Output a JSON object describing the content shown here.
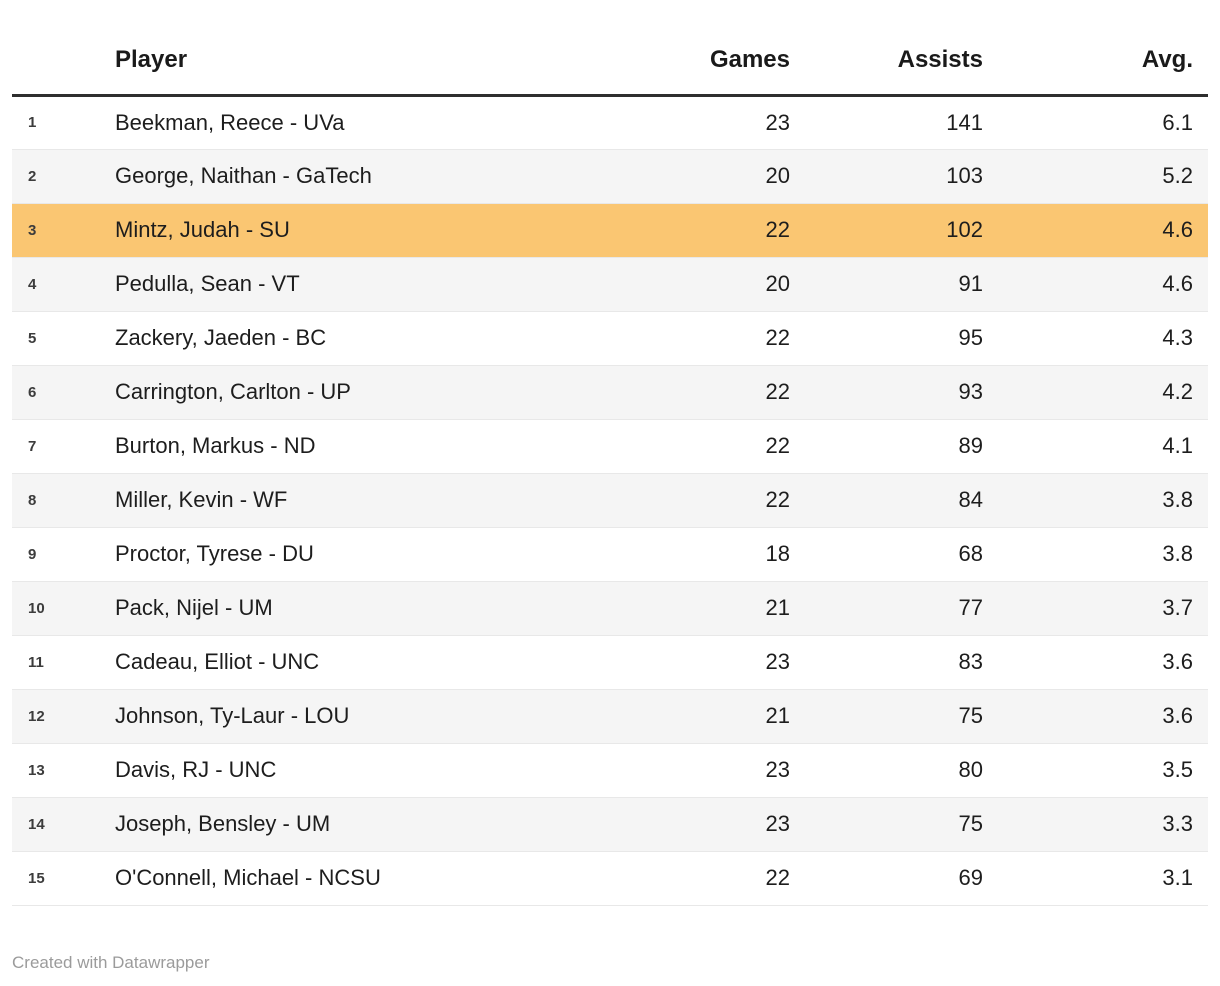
{
  "chart_data": {
    "type": "table",
    "columns": {
      "rank": "",
      "player": "Player",
      "games": "Games",
      "assists": "Assists",
      "avg": "Avg."
    },
    "rows": [
      {
        "rank": 1,
        "player": "Beekman, Reece - UVa",
        "games": 23,
        "assists": 141,
        "avg": 6.1,
        "highlighted": false
      },
      {
        "rank": 2,
        "player": "George, Naithan - GaTech",
        "games": 20,
        "assists": 103,
        "avg": 5.2,
        "highlighted": false
      },
      {
        "rank": 3,
        "player": "Mintz, Judah - SU",
        "games": 22,
        "assists": 102,
        "avg": 4.6,
        "highlighted": true
      },
      {
        "rank": 4,
        "player": "Pedulla, Sean - VT",
        "games": 20,
        "assists": 91,
        "avg": 4.6,
        "highlighted": false
      },
      {
        "rank": 5,
        "player": "Zackery, Jaeden - BC",
        "games": 22,
        "assists": 95,
        "avg": 4.3,
        "highlighted": false
      },
      {
        "rank": 6,
        "player": "Carrington, Carlton - UP",
        "games": 22,
        "assists": 93,
        "avg": 4.2,
        "highlighted": false
      },
      {
        "rank": 7,
        "player": "Burton, Markus - ND",
        "games": 22,
        "assists": 89,
        "avg": 4.1,
        "highlighted": false
      },
      {
        "rank": 8,
        "player": "Miller, Kevin - WF",
        "games": 22,
        "assists": 84,
        "avg": 3.8,
        "highlighted": false
      },
      {
        "rank": 9,
        "player": "Proctor, Tyrese - DU",
        "games": 18,
        "assists": 68,
        "avg": 3.8,
        "highlighted": false
      },
      {
        "rank": 10,
        "player": "Pack, Nijel - UM",
        "games": 21,
        "assists": 77,
        "avg": 3.7,
        "highlighted": false
      },
      {
        "rank": 11,
        "player": "Cadeau, Elliot - UNC",
        "games": 23,
        "assists": 83,
        "avg": 3.6,
        "highlighted": false
      },
      {
        "rank": 12,
        "player": "Johnson, Ty-Laur - LOU",
        "games": 21,
        "assists": 75,
        "avg": 3.6,
        "highlighted": false
      },
      {
        "rank": 13,
        "player": "Davis, RJ - UNC",
        "games": 23,
        "assists": 80,
        "avg": 3.5,
        "highlighted": false
      },
      {
        "rank": 14,
        "player": "Joseph, Bensley - UM",
        "games": 23,
        "assists": 75,
        "avg": 3.3,
        "highlighted": false
      },
      {
        "rank": 15,
        "player": "O'Connell, Michael - NCSU",
        "games": 22,
        "assists": 69,
        "avg": 3.1,
        "highlighted": false
      }
    ],
    "layout_hints": {
      "highlighted_row_rank": 3,
      "zebra_striping": true,
      "numeric_columns_right_aligned": true
    }
  },
  "footer": {
    "credit": "Created with Datawrapper"
  },
  "colors": {
    "highlight": "#fac672",
    "stripe": "#f5f5f5",
    "header_border": "#2e2e2e",
    "row_border": "#e8e8e8",
    "text": "#1d1d1d",
    "rank_text": "#3c3c3c",
    "muted": "#9b9b9b",
    "bg": "#ffffff"
  }
}
